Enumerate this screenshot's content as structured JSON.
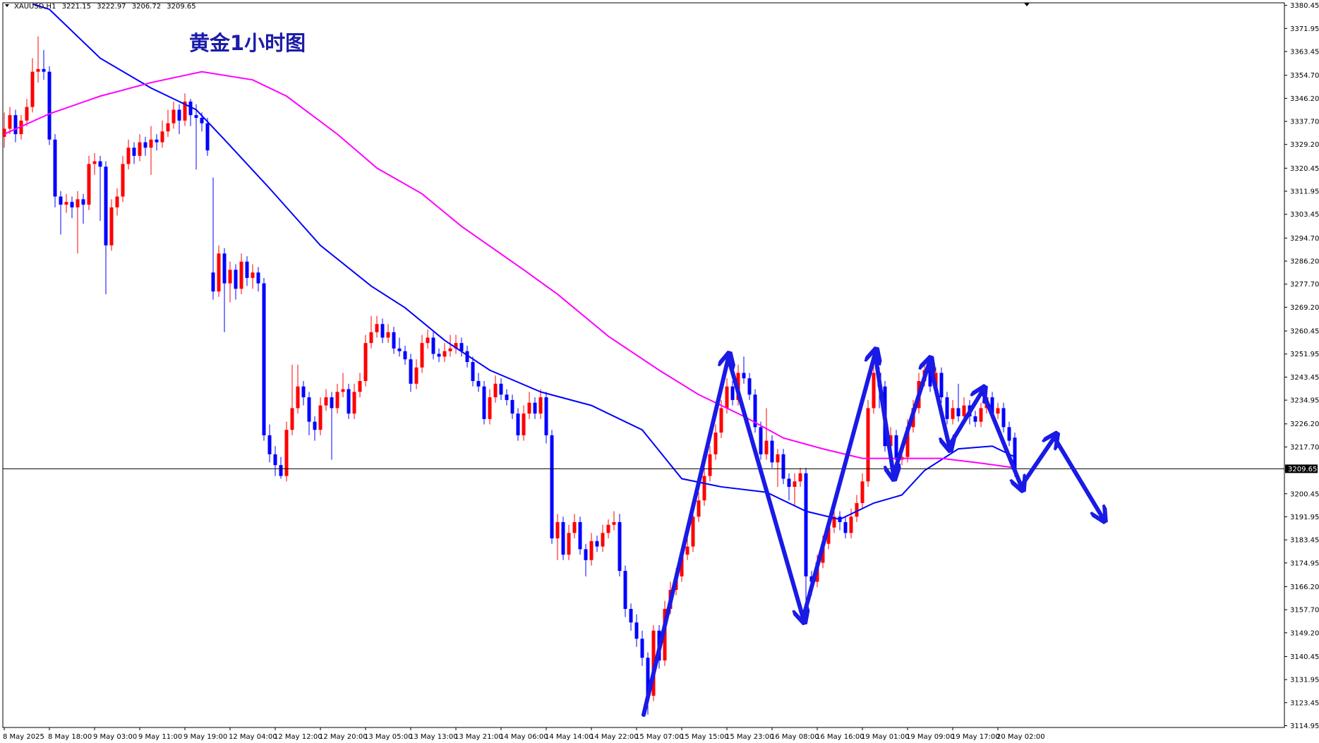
{
  "chart_data": {
    "type": "candlestick",
    "title": "黄金1小时图",
    "header": {
      "symbol": "XAUUSD,H1",
      "ohlc": [
        3221.15,
        3222.97,
        3206.72,
        3209.65
      ]
    },
    "up_color": "#ff0000",
    "down_color": "#0000ff",
    "ylim": [
      3114.3,
      3381.4
    ],
    "yticks": [
      3380.45,
      3371.95,
      3363.45,
      {
        "value": 3354.7,
        "label": "3354.70"
      },
      {
        "value": 3346.2,
        "label": "3346.20"
      },
      {
        "value": 3337.7,
        "label": "3337.70"
      },
      {
        "value": 3329.2,
        "label": "3329.20"
      },
      3320.45,
      3311.95,
      3303.45,
      {
        "value": 3294.7,
        "label": "3294.70"
      },
      {
        "value": 3286.2,
        "label": "3286.20"
      },
      {
        "value": 3277.7,
        "label": "3277.70"
      },
      {
        "value": 3269.2,
        "label": "3269.20"
      },
      3260.45,
      3251.95,
      3243.45,
      3234.95,
      {
        "value": 3226.2,
        "label": "3226.20"
      },
      {
        "value": 3217.7,
        "label": "3217.70"
      },
      3200.45,
      3191.95,
      3183.45,
      3174.95,
      {
        "value": 3166.2,
        "label": "3166.20"
      },
      {
        "value": 3157.7,
        "label": "3157.70"
      },
      {
        "value": 3149.2,
        "label": "3149.20"
      },
      3140.45,
      3131.95,
      3123.45,
      3114.95
    ],
    "last_price": 3209.65,
    "categories": [
      "8 May 2025",
      null,
      null,
      null,
      null,
      null,
      null,
      null,
      "8 May 18:00",
      null,
      null,
      null,
      null,
      null,
      null,
      null,
      "9 May 03:00",
      null,
      null,
      null,
      null,
      null,
      null,
      null,
      "9 May 11:00",
      null,
      null,
      null,
      null,
      null,
      null,
      null,
      "9 May 19:00",
      null,
      null,
      null,
      null,
      null,
      null,
      null,
      "12 May 04:00",
      null,
      null,
      null,
      null,
      null,
      null,
      null,
      "12 May 12:00",
      null,
      null,
      null,
      null,
      null,
      null,
      null,
      "12 May 20:00",
      null,
      null,
      null,
      null,
      null,
      null,
      null,
      "13 May 05:00",
      null,
      null,
      null,
      null,
      null,
      null,
      null,
      "13 May 13:00",
      null,
      null,
      null,
      null,
      null,
      null,
      null,
      "13 May 21:00",
      null,
      null,
      null,
      null,
      null,
      null,
      null,
      "14 May 06:00",
      null,
      null,
      null,
      null,
      null,
      null,
      null,
      "14 May 14:00",
      null,
      null,
      null,
      null,
      null,
      null,
      null,
      "14 May 22:00",
      null,
      null,
      null,
      null,
      null,
      null,
      null,
      "15 May 07:00",
      null,
      null,
      null,
      null,
      null,
      null,
      null,
      "15 May 15:00",
      null,
      null,
      null,
      null,
      null,
      null,
      null,
      "15 May 23:00",
      null,
      null,
      null,
      null,
      null,
      null,
      null,
      "16 May 08:00",
      null,
      null,
      null,
      null,
      null,
      null,
      null,
      "16 May 16:00",
      null,
      null,
      null,
      null,
      null,
      null,
      null,
      "19 May 01:00",
      null,
      null,
      null,
      null,
      null,
      null,
      null,
      "19 May 09:00",
      null,
      null,
      null,
      null,
      null,
      null,
      null,
      "19 May 17:00",
      null,
      null,
      null,
      null,
      null,
      null,
      null,
      "20 May 02:00",
      null,
      null,
      null
    ],
    "ohlc": [
      [
        3332,
        3341,
        3328,
        3335
      ],
      [
        3335,
        3343,
        3333,
        3340
      ],
      [
        3340,
        3342,
        3330,
        3333
      ],
      [
        3333,
        3340,
        3331,
        3338
      ],
      [
        3338,
        3346,
        3336,
        3343
      ],
      [
        3343,
        3361,
        3341,
        3356
      ],
      [
        3356,
        3369,
        3352,
        3357
      ],
      [
        3357,
        3364,
        3353,
        3356
      ],
      [
        3356,
        3358,
        3329,
        3331
      ],
      [
        3331,
        3333,
        3306,
        3310
      ],
      [
        3310,
        3312,
        3296,
        3307
      ],
      [
        3307,
        3311,
        3304,
        3308
      ],
      [
        3308,
        3310,
        3302,
        3306
      ],
      [
        3306,
        3312,
        3289,
        3309
      ],
      [
        3309,
        3311,
        3300,
        3307
      ],
      [
        3307,
        3325,
        3305,
        3322
      ],
      [
        3322,
        3326,
        3318,
        3323
      ],
      [
        3323,
        3325,
        3301,
        3321
      ],
      [
        3321,
        3323,
        3274,
        3292
      ],
      [
        3292,
        3309,
        3290,
        3306
      ],
      [
        3306,
        3313,
        3303,
        3310
      ],
      [
        3310,
        3325,
        3308,
        3322
      ],
      [
        3322,
        3331,
        3320,
        3328
      ],
      [
        3328,
        3330,
        3322,
        3325
      ],
      [
        3325,
        3333,
        3323,
        3330
      ],
      [
        3330,
        3332,
        3325,
        3328
      ],
      [
        3328,
        3336,
        3318,
        3331
      ],
      [
        3331,
        3333,
        3327,
        3330
      ],
      [
        3330,
        3338,
        3328,
        3334
      ],
      [
        3334,
        3342,
        3332,
        3337
      ],
      [
        3337,
        3345,
        3335,
        3342
      ],
      [
        3342,
        3344,
        3333,
        3338
      ],
      [
        3338,
        3348,
        3336,
        3345
      ],
      [
        3345,
        3346,
        3336,
        3340
      ],
      [
        3340,
        3344,
        3320,
        3339
      ],
      [
        3339,
        3341,
        3334,
        3337
      ],
      [
        3337,
        3339,
        3325,
        3327
      ],
      [
        3282,
        3317,
        3272,
        3275
      ],
      [
        3275,
        3292,
        3273,
        3289
      ],
      [
        3289,
        3291,
        3260,
        3278
      ],
      [
        3278,
        3286,
        3271,
        3283
      ],
      [
        3283,
        3285,
        3272,
        3276
      ],
      [
        3276,
        3289,
        3274,
        3286
      ],
      [
        3286,
        3288,
        3277,
        3280
      ],
      [
        3280,
        3285,
        3276,
        3282
      ],
      [
        3282,
        3284,
        3275,
        3278
      ],
      [
        3278,
        3280,
        3220,
        3222
      ],
      [
        3222,
        3226,
        3212,
        3215
      ],
      [
        3215,
        3218,
        3207,
        3211
      ],
      [
        3211,
        3214,
        3206,
        3207
      ],
      [
        3207,
        3227,
        3205,
        3224
      ],
      [
        3224,
        3248,
        3222,
        3232
      ],
      [
        3232,
        3248,
        3230,
        3240
      ],
      [
        3240,
        3242,
        3233,
        3236
      ],
      [
        3236,
        3238,
        3222,
        3227
      ],
      [
        3227,
        3229,
        3220,
        3224
      ],
      [
        3224,
        3236,
        3222,
        3233
      ],
      [
        3233,
        3239,
        3231,
        3236
      ],
      [
        3236,
        3238,
        3213,
        3232
      ],
      [
        3232,
        3241,
        3230,
        3238
      ],
      [
        3238,
        3245,
        3236,
        3239
      ],
      [
        3239,
        3241,
        3228,
        3230
      ],
      [
        3230,
        3241,
        3228,
        3238
      ],
      [
        3238,
        3245,
        3236,
        3242
      ],
      [
        3242,
        3259,
        3240,
        3256
      ],
      [
        3256,
        3266,
        3254,
        3260
      ],
      [
        3260,
        3266,
        3258,
        3263
      ],
      [
        3263,
        3265,
        3256,
        3258
      ],
      [
        3258,
        3263,
        3256,
        3260
      ],
      [
        3260,
        3262,
        3252,
        3254
      ],
      [
        3254,
        3258,
        3251,
        3253
      ],
      [
        3253,
        3255,
        3248,
        3250
      ],
      [
        3250,
        3252,
        3238,
        3241
      ],
      [
        3241,
        3250,
        3239,
        3247
      ],
      [
        3247,
        3259,
        3245,
        3256
      ],
      [
        3256,
        3261,
        3254,
        3258
      ],
      [
        3258,
        3260,
        3250,
        3252
      ],
      [
        3252,
        3254,
        3249,
        3251
      ],
      [
        3251,
        3256,
        3249,
        3253
      ],
      [
        3253,
        3259,
        3251,
        3254
      ],
      [
        3254,
        3259,
        3252,
        3256
      ],
      [
        3256,
        3258,
        3251,
        3253
      ],
      [
        3253,
        3255,
        3247,
        3249
      ],
      [
        3249,
        3251,
        3240,
        3242
      ],
      [
        3242,
        3245,
        3238,
        3240
      ],
      [
        3240,
        3242,
        3226,
        3228
      ],
      [
        3228,
        3239,
        3226,
        3236
      ],
      [
        3236,
        3244,
        3234,
        3241
      ],
      [
        3241,
        3243,
        3235,
        3237
      ],
      [
        3237,
        3239,
        3233,
        3235
      ],
      [
        3235,
        3237,
        3228,
        3230
      ],
      [
        3230,
        3232,
        3220,
        3222
      ],
      [
        3222,
        3233,
        3220,
        3230
      ],
      [
        3230,
        3238,
        3228,
        3234
      ],
      [
        3234,
        3236,
        3228,
        3230
      ],
      [
        3230,
        3239,
        3228,
        3236
      ],
      [
        3236,
        3238,
        3219,
        3222
      ],
      [
        3222,
        3224,
        3182,
        3184
      ],
      [
        3184,
        3193,
        3176,
        3190
      ],
      [
        3190,
        3192,
        3176,
        3178
      ],
      [
        3178,
        3189,
        3176,
        3186
      ],
      [
        3186,
        3193,
        3184,
        3190
      ],
      [
        3190,
        3192,
        3178,
        3180
      ],
      [
        3180,
        3182,
        3170,
        3176
      ],
      [
        3176,
        3186,
        3174,
        3183
      ],
      [
        3183,
        3185,
        3179,
        3181
      ],
      [
        3181,
        3189,
        3179,
        3186
      ],
      [
        3186,
        3191,
        3184,
        3189
      ],
      [
        3189,
        3194,
        3187,
        3190
      ],
      [
        3190,
        3193,
        3170,
        3172
      ],
      [
        3172,
        3174,
        3155,
        3158
      ],
      [
        3158,
        3160,
        3150,
        3153
      ],
      [
        3153,
        3156,
        3144,
        3147
      ],
      [
        3147,
        3150,
        3137,
        3140
      ],
      [
        3140,
        3142,
        3119,
        3126
      ],
      [
        3126,
        3152,
        3124,
        3150
      ],
      [
        3150,
        3152,
        3136,
        3139
      ],
      [
        3139,
        3161,
        3137,
        3158
      ],
      [
        3158,
        3168,
        3156,
        3165
      ],
      [
        3165,
        3173,
        3163,
        3170
      ],
      [
        3170,
        3181,
        3168,
        3178
      ],
      [
        3178,
        3184,
        3176,
        3181
      ],
      [
        3181,
        3195,
        3179,
        3192
      ],
      [
        3192,
        3201,
        3190,
        3198
      ],
      [
        3198,
        3210,
        3196,
        3207
      ],
      [
        3207,
        3218,
        3205,
        3215
      ],
      [
        3215,
        3226,
        3213,
        3223
      ],
      [
        3223,
        3235,
        3221,
        3232
      ],
      [
        3232,
        3243,
        3230,
        3240
      ],
      [
        3240,
        3242,
        3233,
        3235
      ],
      [
        3235,
        3248,
        3233,
        3245
      ],
      [
        3245,
        3251,
        3241,
        3243
      ],
      [
        3243,
        3245,
        3235,
        3237
      ],
      [
        3237,
        3239,
        3223,
        3225
      ],
      [
        3225,
        3227,
        3213,
        3215
      ],
      [
        3215,
        3232,
        3213,
        3220
      ],
      [
        3220,
        3222,
        3210,
        3212
      ],
      [
        3212,
        3217,
        3203,
        3215
      ],
      [
        3215,
        3217,
        3204,
        3206
      ],
      [
        3206,
        3208,
        3198,
        3203
      ],
      [
        3203,
        3208,
        3196,
        3205
      ],
      [
        3205,
        3210,
        3203,
        3208
      ],
      [
        3208,
        3210,
        3161,
        3170
      ],
      [
        3170,
        3172,
        3163,
        3168
      ],
      [
        3168,
        3178,
        3166,
        3175
      ],
      [
        3175,
        3185,
        3173,
        3182
      ],
      [
        3182,
        3191,
        3180,
        3188
      ],
      [
        3188,
        3195,
        3186,
        3192
      ],
      [
        3192,
        3194,
        3187,
        3190
      ],
      [
        3190,
        3192,
        3184,
        3186
      ],
      [
        3186,
        3195,
        3184,
        3192
      ],
      [
        3192,
        3200,
        3190,
        3197
      ],
      [
        3197,
        3208,
        3195,
        3205
      ],
      [
        3205,
        3235,
        3203,
        3232
      ],
      [
        3232,
        3248,
        3230,
        3245
      ],
      [
        3245,
        3247,
        3232,
        3240
      ],
      [
        3240,
        3242,
        3216,
        3218
      ],
      [
        3218,
        3225,
        3212,
        3222
      ],
      [
        3222,
        3224,
        3210,
        3213
      ],
      [
        3213,
        3217,
        3211,
        3214
      ],
      [
        3214,
        3228,
        3212,
        3225
      ],
      [
        3225,
        3235,
        3223,
        3232
      ],
      [
        3232,
        3245,
        3230,
        3242
      ],
      [
        3242,
        3249,
        3240,
        3246
      ],
      [
        3246,
        3248,
        3238,
        3240
      ],
      [
        3240,
        3247,
        3238,
        3245
      ],
      [
        3245,
        3247,
        3234,
        3236
      ],
      [
        3236,
        3238,
        3226,
        3228
      ],
      [
        3228,
        3235,
        3226,
        3232
      ],
      [
        3232,
        3241,
        3227,
        3229
      ],
      [
        3229,
        3236,
        3227,
        3233
      ],
      [
        3233,
        3235,
        3226,
        3229
      ],
      [
        3229,
        3231,
        3225,
        3227
      ],
      [
        3227,
        3234,
        3225,
        3232
      ],
      [
        3232,
        3239,
        3230,
        3236
      ],
      [
        3236,
        3238,
        3228,
        3230
      ],
      [
        3230,
        3234,
        3228,
        3232
      ],
      [
        3232,
        3234,
        3223,
        3225
      ],
      [
        3225,
        3227,
        3218,
        3220
      ],
      [
        3221.15,
        3222.97,
        3206.72,
        3209.65
      ]
    ],
    "series": [
      {
        "color": "#0000ff",
        "x": [
          5,
          8,
          17,
          26,
          34,
          39,
          47,
          56,
          65,
          71,
          78,
          86,
          95,
          104,
          113,
          120,
          127,
          135,
          142,
          148,
          154,
          159,
          163,
          169,
          175,
          179
        ],
        "values": [
          3381,
          3379,
          3361,
          3350,
          3342,
          3331,
          3313,
          3292,
          3277,
          3269,
          3257,
          3246,
          3238,
          3233,
          3224,
          3206,
          3203,
          3201,
          3194,
          3191,
          3197,
          3200,
          3209,
          3217,
          3218,
          3214
        ]
      },
      {
        "color": "#ff00ff",
        "x": [
          0,
          8,
          17,
          26,
          35,
          44,
          50,
          59,
          66,
          74,
          81,
          92,
          98,
          107,
          116,
          123,
          131,
          138,
          145,
          152,
          160,
          166,
          172,
          179
        ],
        "values": [
          3333,
          3340.5,
          3347,
          3352,
          3356,
          3353,
          3347,
          3333,
          3320.5,
          3311,
          3299,
          3283,
          3274,
          3258.5,
          3246,
          3237,
          3229,
          3221,
          3217,
          3213.5,
          3213.5,
          3213.5,
          3212,
          3210
        ]
      }
    ]
  }
}
